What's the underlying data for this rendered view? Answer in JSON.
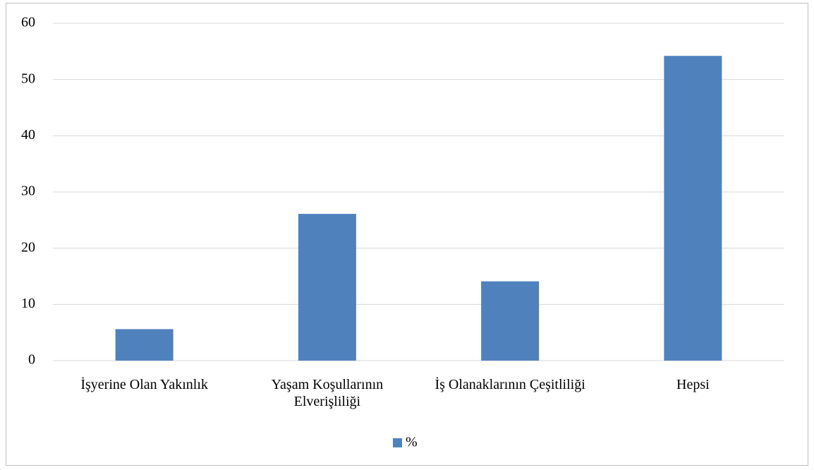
{
  "chart_data": {
    "type": "bar",
    "categories": [
      "İşyerine Olan Yakınlık",
      "Yaşam Koşullarının Elverişliliği",
      "İş Olanaklarının Çeşitliliği",
      "Hepsi"
    ],
    "series": [
      {
        "name": "%",
        "color": "#4f81bd",
        "values": [
          5.6,
          26.1,
          14.1,
          54.2
        ]
      }
    ],
    "ylim": [
      0,
      60
    ],
    "yticks": [
      0,
      10,
      20,
      30,
      40,
      50,
      60
    ],
    "grid": true,
    "legend": "bottom"
  }
}
